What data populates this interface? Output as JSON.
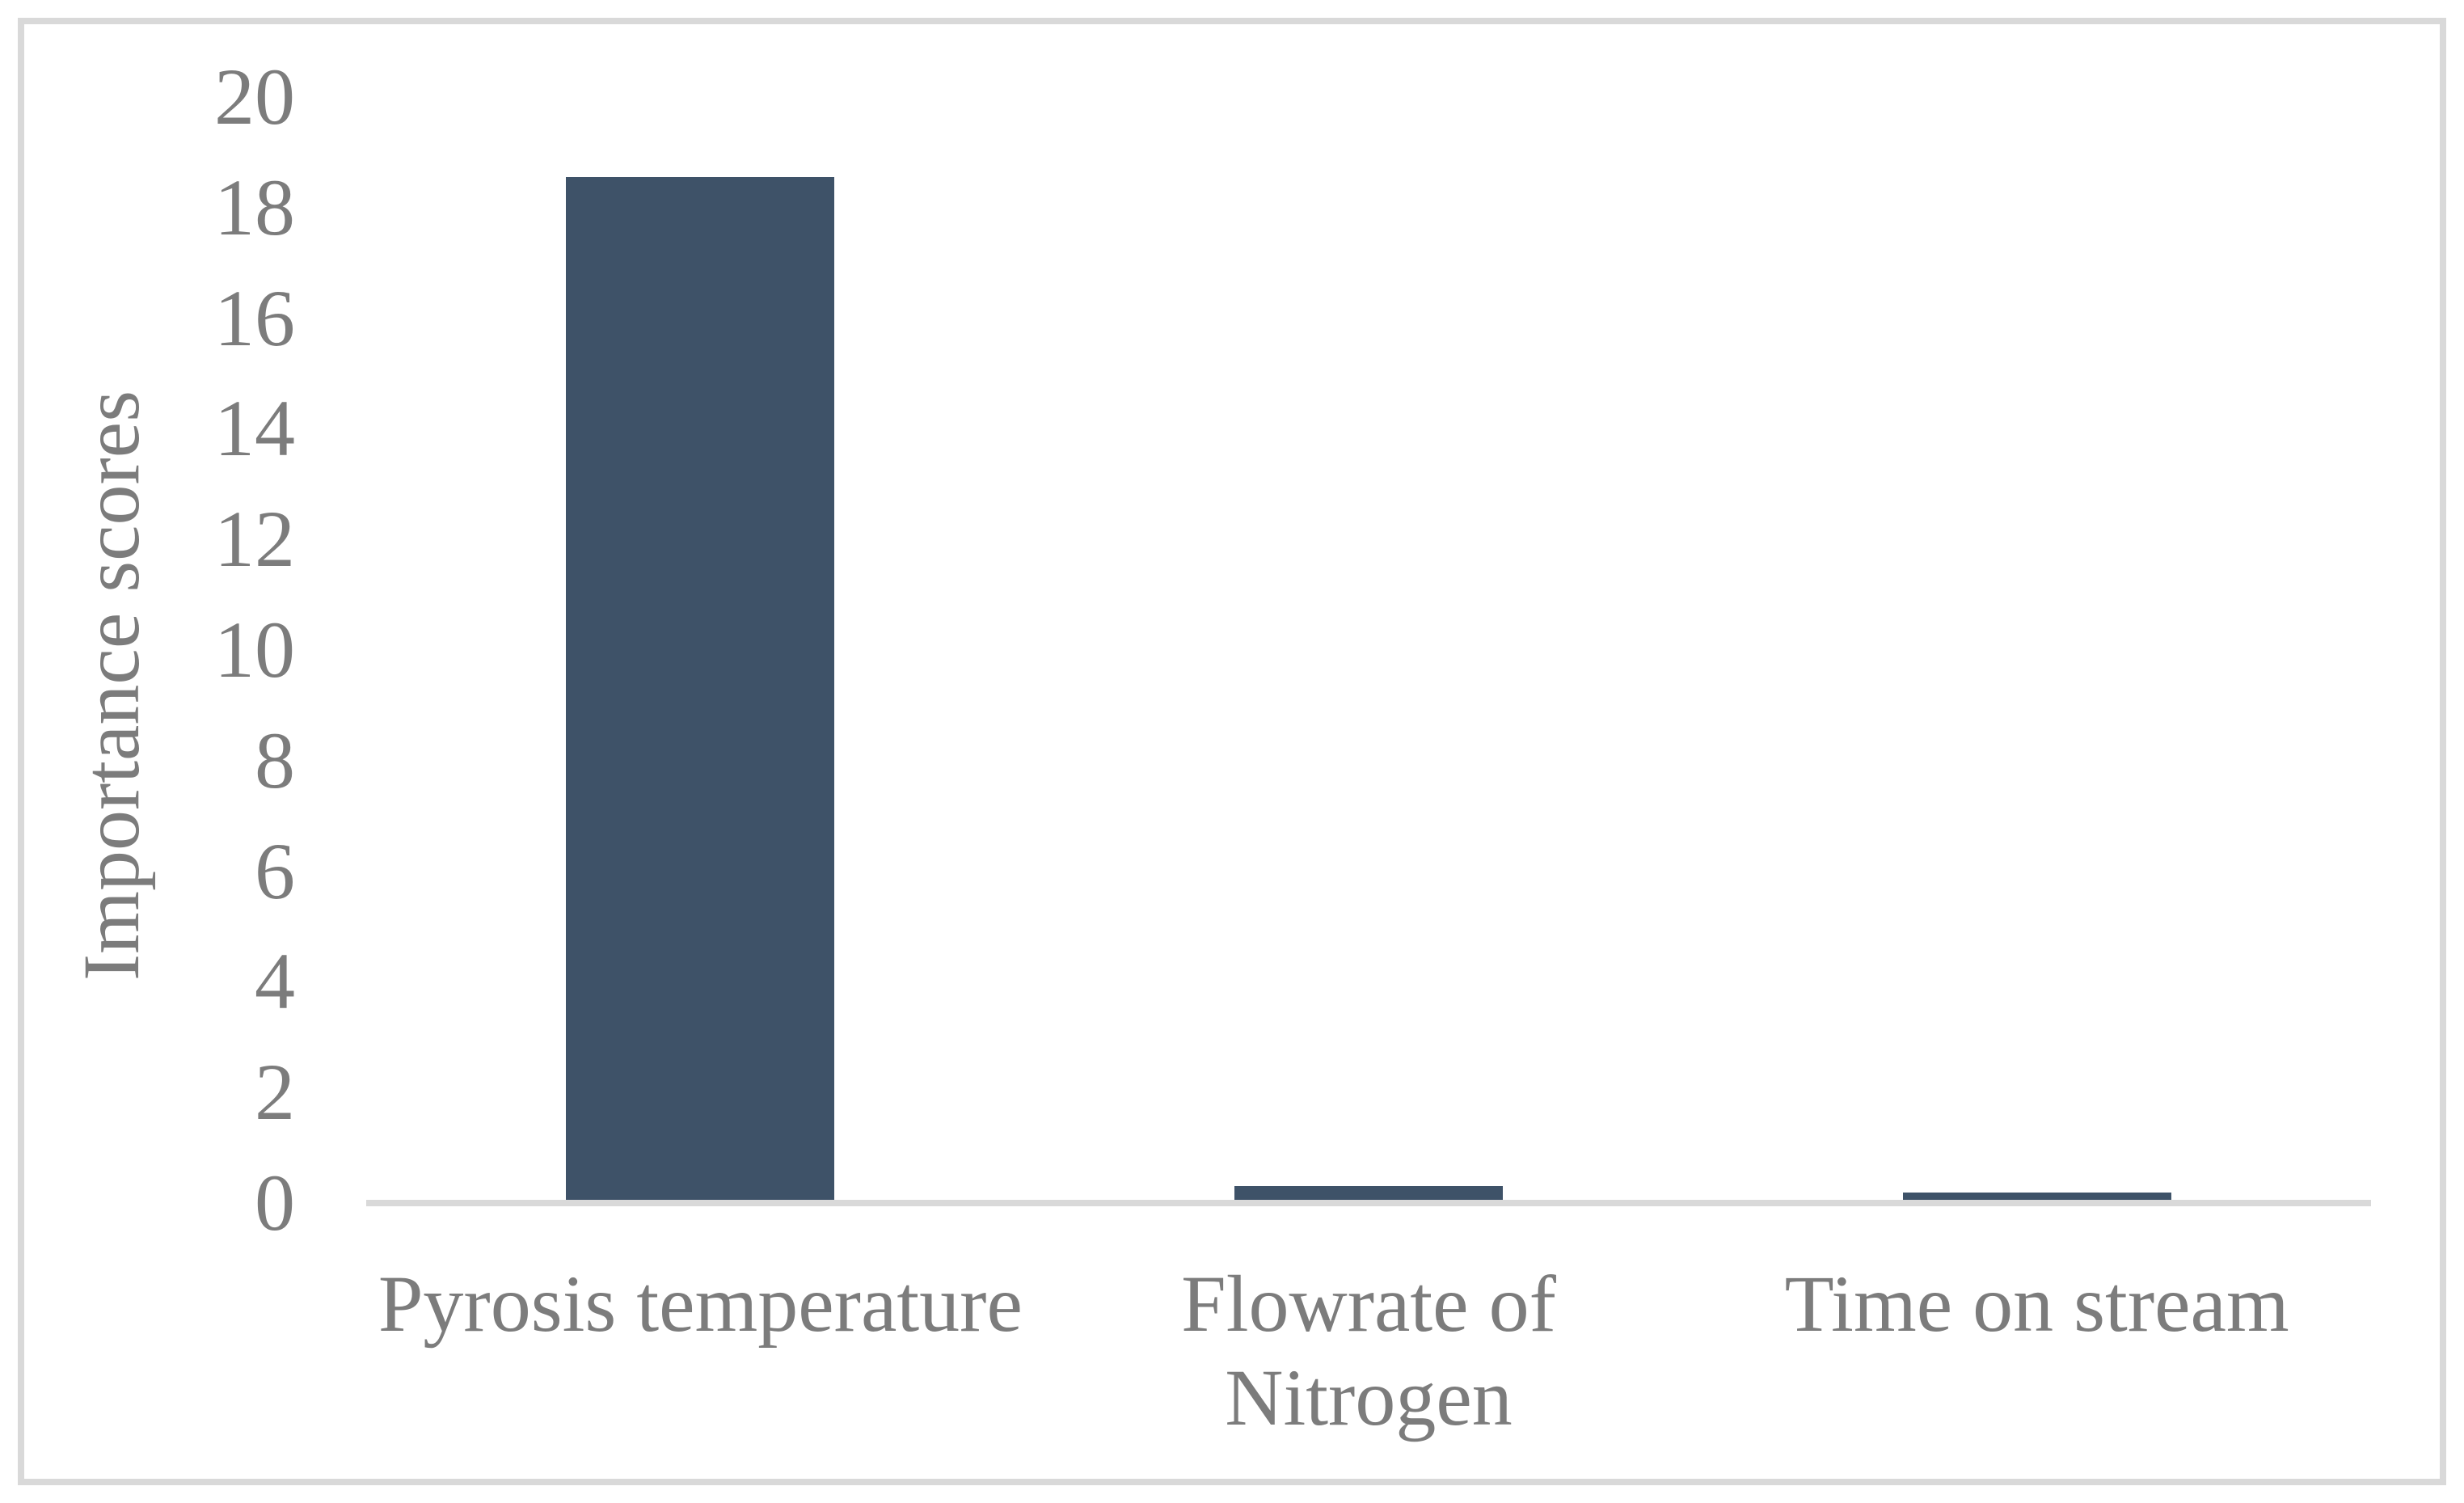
{
  "chart_data": {
    "type": "bar",
    "title": "",
    "xlabel": "",
    "ylabel": "Importance scores",
    "categories": [
      "Pyrosis temperature",
      "Flowrate of Nitrogen",
      "Time on stream"
    ],
    "category_display_lines": [
      [
        "Pyrosis temperature"
      ],
      [
        "Flowrate of",
        "Nitrogen"
      ],
      [
        "Time on stream"
      ]
    ],
    "values": [
      18.5,
      0.25,
      0.13
    ],
    "ylim": [
      0,
      20
    ],
    "yticks": [
      0,
      2,
      4,
      6,
      8,
      10,
      12,
      14,
      16,
      18,
      20
    ],
    "grid": false,
    "legend_position": "none",
    "colors": {
      "bar_fill": "#3E5268",
      "axis_line": "#D9D9D9",
      "frame_border": "#D9D9D9",
      "text": "#7C7C7C",
      "background": "#FFFFFF"
    }
  }
}
